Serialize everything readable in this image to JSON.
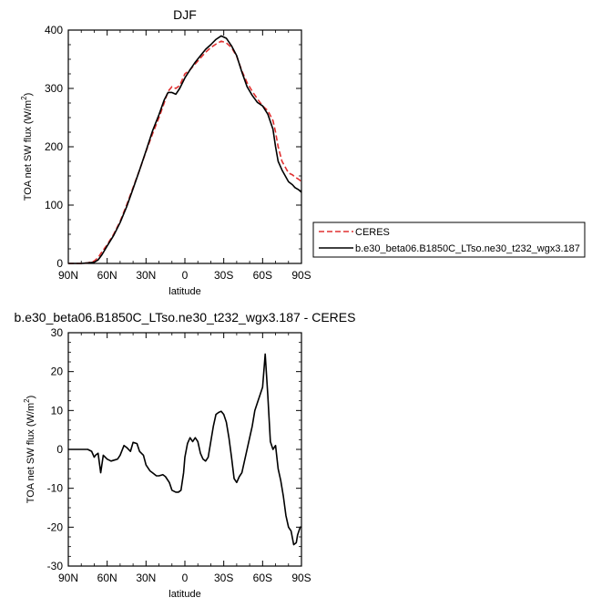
{
  "chart_data": [
    {
      "type": "line",
      "title": "DJF",
      "xlabel": "latitude",
      "ylabel": "TOA net SW flux (W/m²)",
      "ylabel_main": "TOA net SW flux (W/m",
      "ylabel_sup": "2",
      "ylabel_tail": ")",
      "xlim": [
        90,
        -90
      ],
      "ylim": [
        0,
        400
      ],
      "xticks": [
        90,
        60,
        30,
        0,
        -30,
        -60,
        -90
      ],
      "xtick_labels": [
        "90N",
        "60N",
        "30N",
        "0",
        "30S",
        "60S",
        "90S"
      ],
      "yticks": [
        0,
        100,
        200,
        300,
        400
      ],
      "ytick_labels": [
        "0",
        "100",
        "200",
        "300",
        "400"
      ],
      "legend": {
        "position": "right"
      },
      "series": [
        {
          "name": "CERES",
          "color": "#e03030",
          "style": "dashed",
          "x": [
            90,
            85,
            80,
            75,
            70,
            67,
            64,
            60,
            55,
            50,
            45,
            40,
            35,
            30,
            25,
            20,
            16,
            13,
            10,
            7,
            4,
            0,
            -4,
            -8,
            -12,
            -16,
            -20,
            -24,
            -28,
            -32,
            -36,
            -40,
            -44,
            -48,
            -52,
            -56,
            -60,
            -64,
            -68,
            -70,
            -72,
            -75,
            -80,
            -83,
            -85,
            -88,
            -90
          ],
          "y": [
            0,
            0,
            0,
            1,
            4,
            10,
            20,
            32,
            50,
            72,
            100,
            130,
            160,
            192,
            222,
            250,
            275,
            295,
            303,
            300,
            305,
            325,
            332,
            342,
            352,
            362,
            370,
            376,
            381,
            378,
            370,
            355,
            330,
            310,
            295,
            282,
            270,
            262,
            245,
            225,
            200,
            175,
            155,
            152,
            148,
            144,
            140
          ]
        },
        {
          "name": "b.e30_beta06.B1850C_LTso.ne30_t232_wgx3.187",
          "color": "#000000",
          "style": "solid",
          "x": [
            90,
            85,
            80,
            75,
            70,
            67,
            64,
            60,
            55,
            50,
            45,
            40,
            35,
            30,
            25,
            20,
            16,
            13,
            10,
            7,
            4,
            0,
            -4,
            -8,
            -12,
            -16,
            -20,
            -24,
            -28,
            -32,
            -36,
            -40,
            -44,
            -48,
            -52,
            -56,
            -60,
            -64,
            -68,
            -70,
            -72,
            -75,
            -80,
            -83,
            -85,
            -88,
            -90
          ],
          "y": [
            0,
            0,
            0,
            1,
            2,
            6,
            15,
            30,
            48,
            70,
            97,
            128,
            160,
            193,
            227,
            255,
            280,
            293,
            293,
            290,
            300,
            318,
            332,
            345,
            356,
            367,
            375,
            384,
            390,
            386,
            373,
            356,
            328,
            303,
            288,
            276,
            270,
            256,
            230,
            200,
            175,
            160,
            140,
            135,
            130,
            126,
            122
          ]
        }
      ]
    },
    {
      "type": "line",
      "title": "b.e30_beta06.B1850C_LTso.ne30_t232_wgx3.187 - CERES",
      "xlabel": "latitude",
      "ylabel": "TOA net SW flux (W/m²)",
      "ylabel_main": "TOA net SW flux (W/m",
      "ylabel_sup": "2",
      "ylabel_tail": ")",
      "xlim": [
        90,
        -90
      ],
      "ylim": [
        -30,
        30
      ],
      "xticks": [
        90,
        60,
        30,
        0,
        -30,
        -60,
        -90
      ],
      "xtick_labels": [
        "90N",
        "60N",
        "30N",
        "0",
        "30S",
        "60S",
        "90S"
      ],
      "yticks": [
        -30,
        -20,
        -10,
        0,
        10,
        20,
        30
      ],
      "ytick_labels": [
        "-30",
        "-20",
        "-10",
        "0",
        "10",
        "20",
        "30"
      ],
      "series": [
        {
          "color": "#000000",
          "style": "solid",
          "x": [
            90,
            85,
            80,
            75,
            72,
            70,
            69,
            67,
            65,
            63,
            60,
            57,
            55,
            52,
            50,
            47,
            45,
            42,
            40,
            37,
            35,
            32,
            30,
            27,
            25,
            22,
            20,
            17,
            15,
            12,
            10,
            7,
            5,
            3,
            1,
            0,
            -2,
            -4,
            -6,
            -8,
            -10,
            -12,
            -14,
            -16,
            -18,
            -20,
            -22,
            -24,
            -26,
            -28,
            -30,
            -32,
            -34,
            -36,
            -38,
            -40,
            -42,
            -44,
            -46,
            -48,
            -50,
            -52,
            -54,
            -56,
            -58,
            -60,
            -62,
            -64,
            -66,
            -68,
            -70,
            -72,
            -74,
            -76,
            -78,
            -80,
            -82,
            -84,
            -86,
            -87,
            -88,
            -89,
            -90
          ],
          "y": [
            0,
            0,
            0,
            0,
            -0.5,
            -2,
            -1.5,
            -1,
            -6,
            -1.5,
            -2.5,
            -3,
            -2.8,
            -2.5,
            -1.5,
            1,
            0.5,
            -0.5,
            1.8,
            1.5,
            -0.5,
            -1.5,
            -4,
            -5.5,
            -6,
            -6.8,
            -6.8,
            -6.5,
            -7,
            -8.5,
            -10.5,
            -11,
            -11,
            -10.5,
            -6,
            -2,
            1.5,
            3,
            2,
            3,
            2,
            -1,
            -2.5,
            -3,
            -2,
            2,
            6,
            9,
            9.5,
            9.8,
            9,
            7,
            3,
            -2,
            -7.5,
            -8.5,
            -7,
            -6,
            -3,
            0,
            3,
            6,
            10,
            12,
            14,
            16,
            24.5,
            14,
            2,
            0,
            1,
            -5,
            -8,
            -12,
            -17,
            -20,
            -21,
            -24.5,
            -24,
            -22,
            -21,
            -20,
            -20
          ]
        }
      ]
    }
  ]
}
